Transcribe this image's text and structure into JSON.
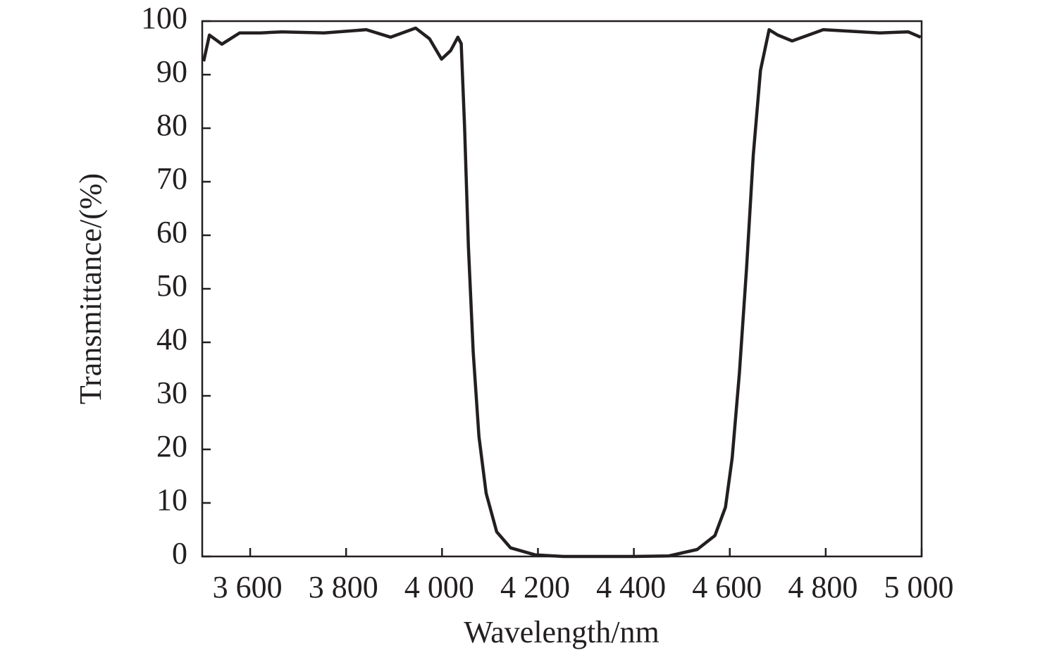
{
  "chart_data": {
    "type": "line",
    "x_label": "Wavelength/nm",
    "y_label": "Transmittance/(%)",
    "xlim": [
      3500,
      5000
    ],
    "ylim": [
      0,
      100
    ],
    "xticks": [
      {
        "value": 3600,
        "label": "3 600"
      },
      {
        "value": 3800,
        "label": "3 800"
      },
      {
        "value": 4000,
        "label": "4 000"
      },
      {
        "value": 4200,
        "label": "4 200"
      },
      {
        "value": 4400,
        "label": "4 400"
      },
      {
        "value": 4600,
        "label": "4 600"
      },
      {
        "value": 4800,
        "label": "4 800"
      },
      {
        "value": 5000,
        "label": "5 000"
      }
    ],
    "yticks": [
      0,
      10,
      20,
      30,
      40,
      50,
      60,
      70,
      80,
      90,
      100
    ],
    "series": [
      {
        "color": "#231f20",
        "x": [
          3503,
          3515,
          3541,
          3578,
          3622,
          3666,
          3754,
          3842,
          3893,
          3945,
          3974,
          3999,
          4018,
          4033,
          4040,
          4047,
          4055,
          4065,
          4077,
          4092,
          4114,
          4143,
          4194,
          4253,
          4400,
          4473,
          4532,
          4569,
          4591,
          4605,
          4620,
          4635,
          4649,
          4664,
          4682,
          4700,
          4730,
          4795,
          4913,
          4972,
          4998
        ],
        "values": [
          92.5,
          97.4,
          95.7,
          97.8,
          97.8,
          98,
          97.8,
          98.4,
          97,
          98.7,
          96.7,
          92.9,
          94.5,
          97,
          95.8,
          80.3,
          57.9,
          38.2,
          22.4,
          11.8,
          4.6,
          1.6,
          0.3,
          0,
          0,
          0.1,
          1.3,
          3.9,
          9.2,
          18.4,
          34.2,
          53.9,
          75,
          90.8,
          98.4,
          97.4,
          96.3,
          98.4,
          97.8,
          98,
          97
        ]
      }
    ]
  }
}
